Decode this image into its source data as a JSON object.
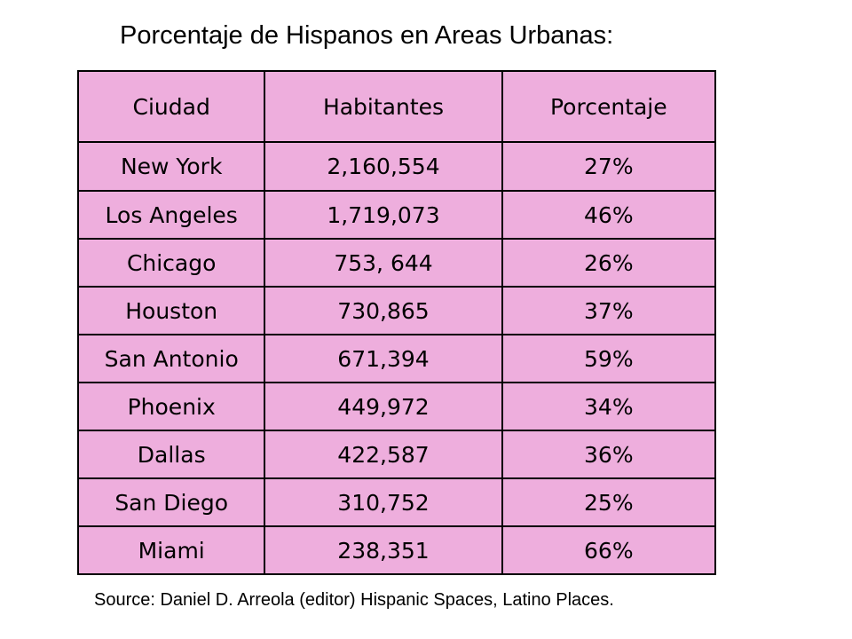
{
  "title": "Porcentaje de Hispanos en Areas Urbanas:",
  "table": {
    "headers": [
      "Ciudad",
      "Habitantes",
      "Porcentaje"
    ],
    "rows": [
      [
        "New York",
        "2,160,554",
        "27%"
      ],
      [
        "Los Angeles",
        "1,719,073",
        "46%"
      ],
      [
        "Chicago",
        "753, 644",
        "26%"
      ],
      [
        "Houston",
        "730,865",
        "37%"
      ],
      [
        "San Antonio",
        "671,394",
        "59%"
      ],
      [
        "Phoenix",
        "449,972",
        "34%"
      ],
      [
        "Dallas",
        "422,587",
        "36%"
      ],
      [
        "San Diego",
        "310,752",
        "25%"
      ],
      [
        "Miami",
        "238,351",
        "66%"
      ]
    ]
  },
  "source": "Source: Daniel D. Arreola (editor) Hispanic Spaces, Latino Places.",
  "colors": {
    "table_background": "#eeaedd",
    "border": "#000000"
  }
}
